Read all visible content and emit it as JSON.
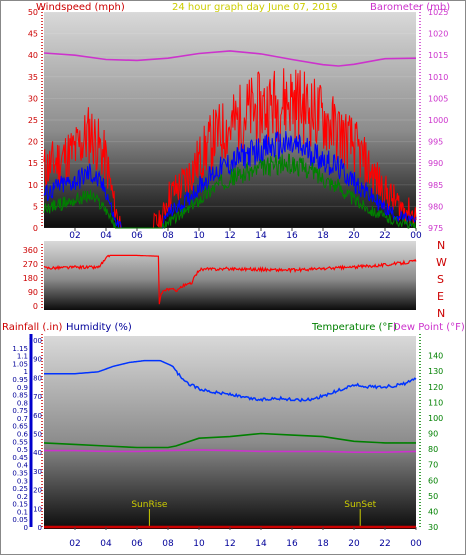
{
  "header": {
    "left": "Windspeed (mph)",
    "center": "24 hour graph day   June 07, 2019",
    "right": "Barometer (mb)"
  },
  "bottom_header": {
    "rain": "Rainfall (.in)",
    "hum": "Humidity (%)",
    "temp": "Temperature (°F)",
    "dew": "Dew Point (°F)"
  },
  "compass": [
    "N",
    "W",
    "S",
    "E",
    "N"
  ],
  "colors": {
    "gust": "#ff0000",
    "avg": "#0000ff",
    "low": "#008000",
    "baro": "#cc33cc",
    "dir": "#ff0000",
    "humidity": "#0033ff",
    "temp": "#008000",
    "dew": "#cc33cc",
    "rain": "#cc0000",
    "markers": "#cccc00",
    "axis_left": "#cc0000",
    "axis_right": "#cc33cc",
    "axis_hum": "#000099",
    "axis_temp": "#008000"
  },
  "chart_data": [
    {
      "type": "line",
      "name": "wind-barometer",
      "x_ticks": [
        "02",
        "04",
        "06",
        "08",
        "10",
        "12",
        "14",
        "16",
        "18",
        "20",
        "22",
        "00"
      ],
      "x_range_hours": [
        0,
        24
      ],
      "ylabel_left": "Windspeed (mph)",
      "yticks_left": [
        "0",
        "5",
        "10",
        "15",
        "20",
        "25",
        "30",
        "35",
        "40",
        "45",
        "50"
      ],
      "ylim_left": [
        0,
        50
      ],
      "ylabel_right": "Barometer (mb)",
      "yticks_right": [
        "975",
        "980",
        "985",
        "990",
        "995",
        "1000",
        "1005",
        "1010",
        "1015",
        "1020",
        "1025"
      ],
      "ylim_right": [
        975,
        1025
      ],
      "series": [
        {
          "key": "baro",
          "x": [
            0,
            2,
            4,
            6,
            8,
            10,
            12,
            14,
            16,
            18,
            19,
            20,
            22,
            24
          ],
          "values": [
            1015.5,
            1015,
            1014,
            1013.8,
            1014.3,
            1015.4,
            1016,
            1015.3,
            1014,
            1012.8,
            1012.5,
            1012.9,
            1014.2,
            1014.3
          ]
        },
        {
          "key": "gust",
          "x": [
            0,
            1,
            2,
            3,
            4,
            4.6,
            5,
            6,
            7,
            7.6,
            8,
            9,
            10,
            11,
            12,
            13,
            14,
            15,
            16,
            17,
            18,
            19,
            20,
            21,
            22,
            23,
            24
          ],
          "values": [
            12,
            14,
            16,
            20,
            14,
            3,
            0,
            0,
            0,
            1,
            6,
            9,
            14,
            19,
            21,
            24,
            25,
            26,
            27,
            25,
            23,
            20,
            17,
            12,
            7,
            4,
            2
          ]
        },
        {
          "key": "avg",
          "x": [
            0,
            1,
            2,
            3,
            4,
            4.6,
            5,
            6,
            7,
            7.6,
            8,
            9,
            10,
            11,
            12,
            13,
            14,
            15,
            16,
            17,
            18,
            19,
            20,
            21,
            22,
            23,
            24
          ],
          "values": [
            7,
            9,
            10,
            12,
            8,
            1,
            0,
            0,
            0,
            0,
            3,
            5,
            9,
            12,
            14,
            16,
            17,
            18,
            18,
            17,
            15,
            13,
            10,
            7,
            4,
            2,
            1
          ]
        },
        {
          "key": "low",
          "x": [
            0,
            1,
            2,
            3,
            4,
            4.6,
            5,
            6,
            7,
            7.6,
            8,
            9,
            10,
            11,
            12,
            13,
            14,
            15,
            16,
            17,
            18,
            19,
            20,
            21,
            22,
            23,
            24
          ],
          "values": [
            4,
            5,
            6,
            7,
            4,
            0,
            0,
            0,
            0,
            0,
            1,
            3,
            6,
            9,
            11,
            12,
            13,
            14,
            14,
            13,
            11,
            9,
            6,
            4,
            2,
            1,
            0
          ]
        }
      ]
    },
    {
      "type": "line",
      "name": "wind-direction",
      "yticks": [
        "0",
        "90",
        "180",
        "270",
        "360"
      ],
      "ylim": [
        0,
        360
      ],
      "series": [
        {
          "key": "dir",
          "x": [
            0,
            2.5,
            3.5,
            4.2,
            6,
            7.4,
            7.42,
            7.6,
            8,
            8.5,
            9,
            9.5,
            10,
            12,
            14,
            16,
            18,
            20,
            22,
            23,
            24
          ],
          "values": [
            245,
            250,
            248,
            325,
            325,
            320,
            0,
            90,
            110,
            100,
            130,
            145,
            235,
            240,
            235,
            230,
            240,
            250,
            265,
            275,
            290
          ]
        }
      ]
    },
    {
      "type": "line",
      "name": "humidity-temperature",
      "x_ticks": [
        "02",
        "04",
        "06",
        "08",
        "10",
        "12",
        "14",
        "16",
        "18",
        "20",
        "22",
        "00"
      ],
      "ylabel_left": "Humidity (%)",
      "yticks_humidity": [
        "0",
        "10",
        "20",
        "30",
        "40",
        "50",
        "60",
        "70",
        "80",
        "90",
        "100"
      ],
      "ylim_humidity": [
        0,
        100
      ],
      "ylabel_rain": "Rainfall (.in)",
      "yticks_rain": [
        "0",
        "0.05",
        "0.1",
        "0.15",
        "0.2",
        "0.25",
        "0.3",
        "0.35",
        "0.4",
        "0.45",
        "0.5",
        "0.55",
        "0.6",
        "0.65",
        "0.7",
        "0.75",
        "0.8",
        "0.85",
        "0.9",
        "0.95",
        "1",
        "1.05",
        "1.1",
        "1.15"
      ],
      "ylim_rain": [
        0,
        1.2
      ],
      "ylabel_right": "Temperature (°F)",
      "yticks_temp": [
        "30",
        "40",
        "50",
        "60",
        "70",
        "80",
        "90",
        "100",
        "110",
        "120",
        "130",
        "140"
      ],
      "ylim_temp": [
        30,
        150
      ],
      "annotations": [
        {
          "label": "SunRise",
          "x": 6.8
        },
        {
          "label": "SunSet",
          "x": 20.4
        }
      ],
      "series": [
        {
          "key": "humidity",
          "x": [
            0,
            2,
            3.5,
            4.5,
            5.5,
            6.5,
            7.5,
            8.3,
            9,
            10,
            11,
            12,
            13,
            14,
            15,
            16,
            17,
            18,
            19,
            20,
            21,
            22,
            23,
            24
          ],
          "values": [
            82,
            82,
            83,
            86,
            88,
            89,
            89,
            86,
            78,
            74,
            72,
            71,
            69,
            68,
            69,
            68,
            68,
            70,
            73,
            76,
            75,
            75,
            76,
            79
          ]
        },
        {
          "key": "temp",
          "x": [
            0,
            2,
            4,
            6,
            8,
            8.5,
            10,
            12,
            14,
            16,
            18,
            20,
            22,
            24
          ],
          "values": [
            84,
            83,
            82,
            81,
            81,
            82,
            87,
            88,
            90,
            89,
            88,
            85,
            84,
            84
          ]
        },
        {
          "key": "dew",
          "x": [
            0,
            2,
            4,
            6,
            8,
            10,
            12,
            14,
            16,
            18,
            20,
            22,
            24
          ],
          "values": [
            79,
            79,
            78.5,
            78.5,
            79,
            79.5,
            79,
            78.5,
            78.5,
            78.5,
            78,
            78,
            78.5
          ]
        },
        {
          "key": "rain",
          "x": [
            0,
            24
          ],
          "values": [
            0,
            0
          ]
        }
      ]
    }
  ]
}
